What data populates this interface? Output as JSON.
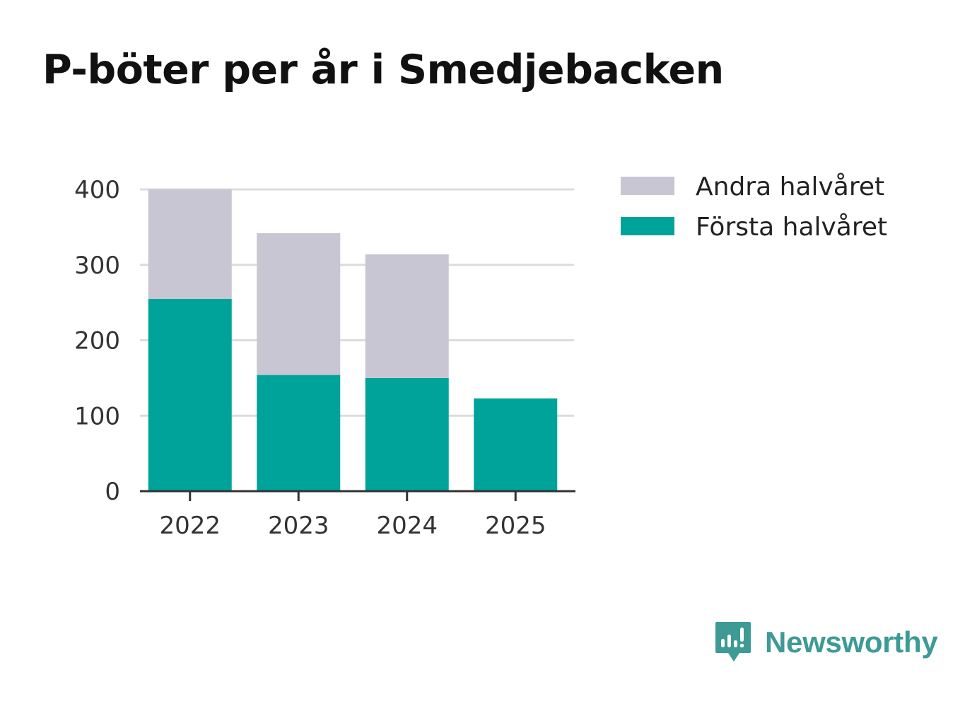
{
  "title": "P-böter per år i Smedjebacken",
  "brand": {
    "name": "Newsworthy",
    "color": "#3d9a94",
    "icon": "newsworthy-logo-icon"
  },
  "chart_data": {
    "type": "bar",
    "stacked": true,
    "title": "P-böter per år i Smedjebacken",
    "xlabel": "",
    "ylabel": "",
    "categories": [
      "2022",
      "2023",
      "2024",
      "2025"
    ],
    "series": [
      {
        "name": "Första halvåret",
        "color": "#00a39a",
        "values": [
          255,
          154,
          150,
          123
        ]
      },
      {
        "name": "Andra halvåret",
        "color": "#c7c6d2",
        "values": [
          145,
          188,
          164,
          null
        ]
      }
    ],
    "legend_order": [
      "Andra halvåret",
      "Första halvåret"
    ],
    "yticks": [
      0,
      100,
      200,
      300,
      400
    ],
    "ylim": [
      0,
      400
    ],
    "grid": true,
    "legend_position": "top-right"
  }
}
